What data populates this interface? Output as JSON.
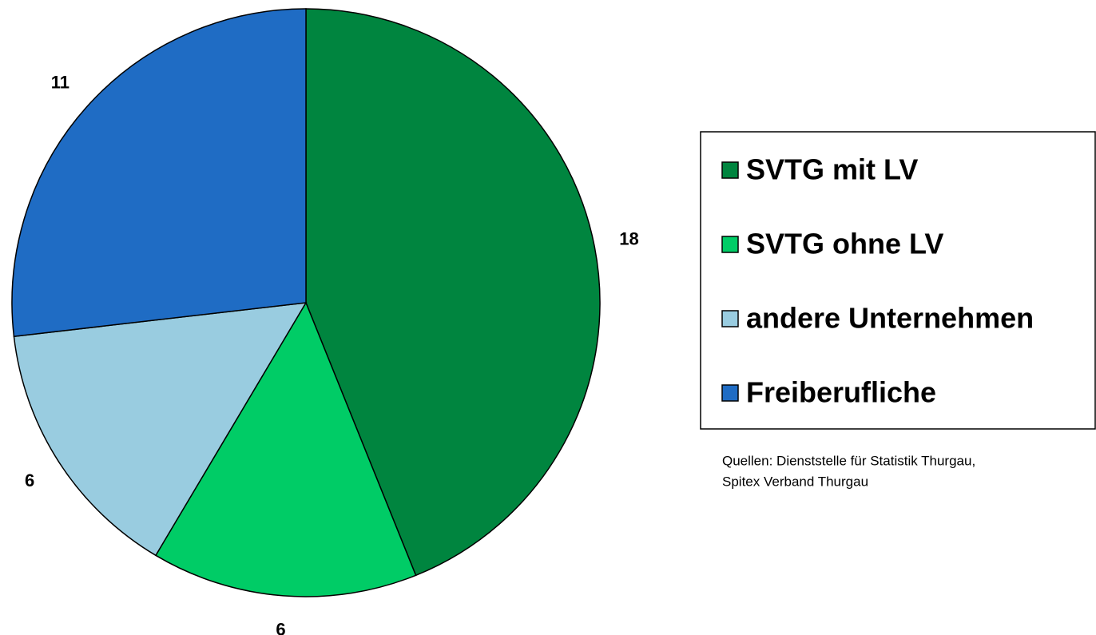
{
  "chart_data": {
    "type": "pie",
    "categories": [
      "SVTG mit LV",
      "SVTG ohne LV",
      "andere Unternehmen",
      "Freiberufliche"
    ],
    "values": [
      18,
      6,
      6,
      11
    ],
    "colors": [
      "#00853f",
      "#00cc66",
      "#99cce0",
      "#1f6cc4"
    ],
    "source": [
      "Quellen: Dienststelle für Statistik Thurgau,",
      "Spitex Verband Thurgau"
    ]
  }
}
